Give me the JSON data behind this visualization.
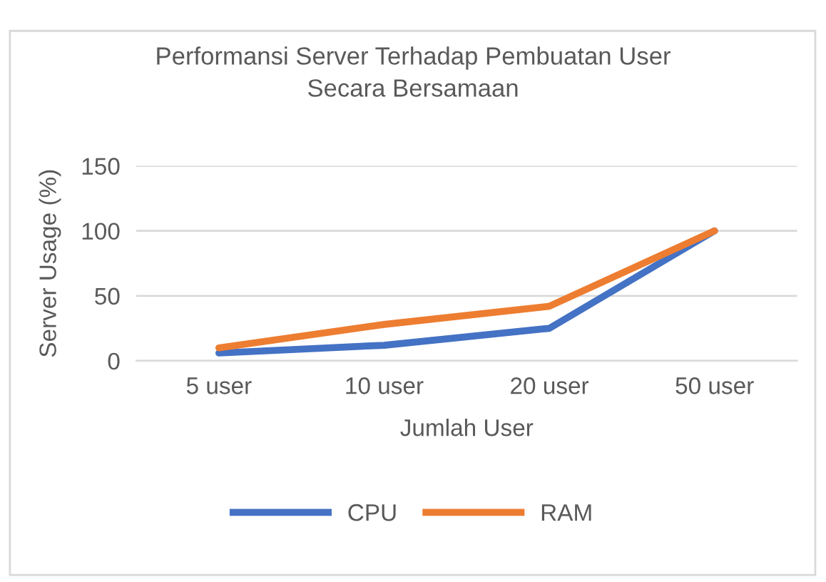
{
  "chart_data": {
    "type": "line",
    "title": "Performansi Server Terhadap Pembuatan User\nSecara Bersamaan",
    "xlabel": "Jumlah User",
    "ylabel": "Server Usage (%)",
    "categories": [
      "5 user",
      "10 user",
      "20 user",
      "50 user"
    ],
    "series": [
      {
        "name": "CPU",
        "color": "#4472c4",
        "values": [
          6,
          12,
          25,
          100
        ]
      },
      {
        "name": "RAM",
        "color": "#ed7d31",
        "values": [
          10,
          28,
          42,
          100
        ]
      }
    ],
    "ylim": [
      0,
      150
    ],
    "yticks": [
      0,
      50,
      100,
      150
    ],
    "grid": "y",
    "legend": "bottom",
    "marker": "none",
    "line_style": "solid"
  }
}
